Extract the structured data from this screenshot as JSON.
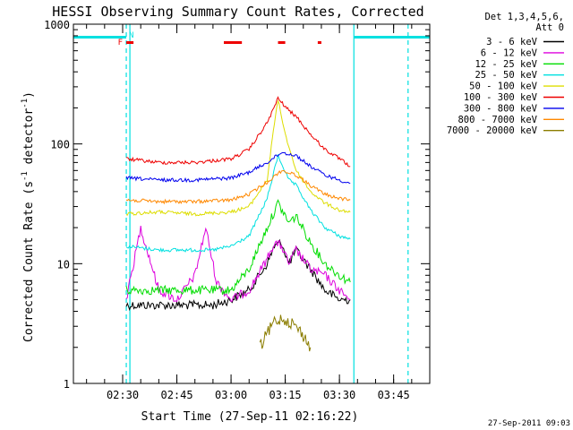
{
  "chart_data": {
    "type": "line",
    "title": "HESSI Observing Summary Count Rates, Corrected",
    "xlabel": "Start Time (27-Sep-11 02:16:22)",
    "ylabel": "Corrected Count Rate (s-1 detector-1)",
    "ylabel_parts": {
      "pre": "Corrected Count Rate (s",
      "sup1": "-1",
      "mid": " detector",
      "sup2": "-1",
      "post": ")"
    },
    "yscale": "log",
    "ylim": [
      1,
      1000
    ],
    "xlim": [
      "02:16:22",
      "03:55:00"
    ],
    "x_ticks": [
      "02:30",
      "02:45",
      "03:00",
      "03:15",
      "03:30",
      "03:45"
    ],
    "y_ticks": [
      {
        "value": 1,
        "label": "1"
      },
      {
        "value": 10,
        "label": "10"
      },
      {
        "value": 100,
        "label": "100"
      },
      {
        "value": 1000,
        "label": "1000"
      }
    ],
    "timestamp": "27-Sep-2011 09:03",
    "legend": {
      "placement": "right",
      "header": [
        "Det 1,3,4,5,6,",
        "Att 0"
      ]
    },
    "series": [
      {
        "name": "3 - 6 keV",
        "color": "#000000",
        "x": [
          "02:31",
          "02:40",
          "02:45",
          "02:50",
          "02:55",
          "03:00",
          "03:05",
          "03:10",
          "03:12",
          "03:14",
          "03:16",
          "03:18",
          "03:22",
          "03:26",
          "03:30",
          "03:33"
        ],
        "y": [
          4.5,
          4.5,
          4.5,
          4.5,
          4.5,
          5,
          6,
          10,
          14,
          15,
          10,
          13,
          9,
          6,
          5,
          5
        ]
      },
      {
        "name": "6 - 12 keV",
        "color": "#dd00dd",
        "x": [
          "02:31",
          "02:35",
          "02:40",
          "02:45",
          "02:50",
          "02:53",
          "02:56",
          "03:00",
          "03:05",
          "03:10",
          "03:12",
          "03:14",
          "03:16",
          "03:18",
          "03:22",
          "03:26",
          "03:30",
          "03:33"
        ],
        "y": [
          5,
          20,
          6,
          5,
          8,
          20,
          7,
          5,
          6,
          11,
          15,
          14,
          10,
          13,
          9,
          8,
          6,
          5
        ]
      },
      {
        "name": "12 - 25 keV",
        "color": "#00dd00",
        "x": [
          "02:31",
          "02:40",
          "02:45",
          "02:50",
          "02:55",
          "03:00",
          "03:05",
          "03:10",
          "03:13",
          "03:16",
          "03:18",
          "03:22",
          "03:26",
          "03:30",
          "03:33"
        ],
        "y": [
          6,
          6,
          6,
          6,
          6,
          6,
          9,
          20,
          32,
          22,
          25,
          15,
          10,
          8,
          7
        ]
      },
      {
        "name": "25 - 50 keV",
        "color": "#00e0e0",
        "x": [
          "02:31",
          "02:40",
          "02:45",
          "02:50",
          "02:55",
          "03:00",
          "03:05",
          "03:10",
          "03:13",
          "03:16",
          "03:18",
          "03:22",
          "03:26",
          "03:30",
          "03:33"
        ],
        "y": [
          14,
          13,
          13,
          13,
          13,
          14,
          17,
          35,
          80,
          50,
          45,
          28,
          20,
          17,
          16
        ]
      },
      {
        "name": "50 - 100 keV",
        "color": "#dddd00",
        "x": [
          "02:31",
          "02:40",
          "02:50",
          "03:00",
          "03:05",
          "03:10",
          "03:12",
          "03:13",
          "03:14",
          "03:15",
          "03:18",
          "03:22",
          "03:26",
          "03:30",
          "03:33"
        ],
        "y": [
          26,
          27,
          26,
          27,
          30,
          50,
          150,
          230,
          170,
          120,
          60,
          40,
          32,
          28,
          27
        ]
      },
      {
        "name": "100 - 300 keV",
        "color": "#ee0000",
        "x": [
          "02:31",
          "02:40",
          "02:50",
          "03:00",
          "03:05",
          "03:10",
          "03:13",
          "03:16",
          "03:18",
          "03:22",
          "03:26",
          "03:30",
          "03:33"
        ],
        "y": [
          75,
          70,
          70,
          75,
          90,
          150,
          240,
          190,
          170,
          120,
          90,
          75,
          65
        ]
      },
      {
        "name": "300 - 800 keV",
        "color": "#0000ee",
        "x": [
          "02:31",
          "02:40",
          "02:50",
          "03:00",
          "03:05",
          "03:10",
          "03:14",
          "03:18",
          "03:22",
          "03:26",
          "03:30",
          "03:33"
        ],
        "y": [
          52,
          50,
          50,
          52,
          58,
          70,
          85,
          80,
          65,
          55,
          50,
          47
        ]
      },
      {
        "name": "800 - 7000 keV",
        "color": "#ff8800",
        "x": [
          "02:31",
          "02:40",
          "02:50",
          "03:00",
          "03:05",
          "03:10",
          "03:14",
          "03:18",
          "03:22",
          "03:26",
          "03:30",
          "03:33"
        ],
        "y": [
          34,
          33,
          33,
          34,
          38,
          48,
          60,
          55,
          45,
          38,
          35,
          34
        ]
      },
      {
        "name": "7000 - 20000 keV",
        "color": "#8b7d00",
        "x": [
          "03:08",
          "03:10",
          "03:12",
          "03:14",
          "03:16",
          "03:18",
          "03:20",
          "03:22"
        ],
        "y": [
          2,
          2.6,
          3.3,
          3.5,
          3.3,
          3,
          2.5,
          2
        ]
      }
    ],
    "annotations": {
      "markers": [
        {
          "label": "F",
          "color": "#ee0000"
        },
        {
          "label": "N",
          "color": "#00e0e0"
        }
      ],
      "red_bars": [
        [
          "02:31",
          "02:33"
        ],
        [
          "02:58",
          "03:03"
        ],
        [
          "03:13",
          "03:15"
        ],
        [
          "03:24",
          "03:25"
        ]
      ],
      "cyan_bars": [
        [
          "02:16:22",
          "02:31"
        ],
        [
          "03:34",
          "03:55"
        ]
      ],
      "cyan_vlines": [
        {
          "x": "02:31",
          "style": "dashed"
        },
        {
          "x": "02:32",
          "style": "solid"
        },
        {
          "x": "03:34",
          "style": "solid"
        },
        {
          "x": "03:49",
          "style": "dashed"
        }
      ]
    }
  }
}
